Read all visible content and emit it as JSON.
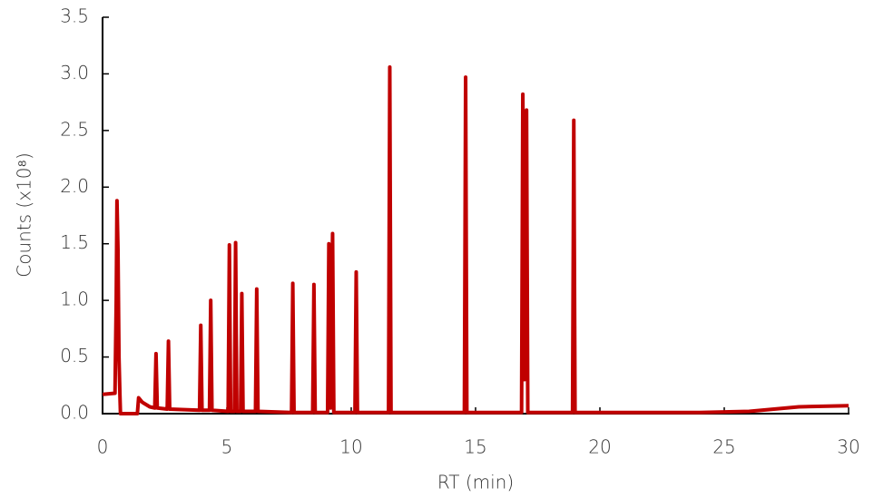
{
  "chart_data": {
    "type": "line",
    "x_label": "RT (min)",
    "y_label": "Counts (x10⁸)",
    "x": [
      0,
      0.5,
      0.55,
      0.58,
      0.62,
      0.66,
      0.7,
      0.72,
      1.4,
      1.45,
      1.6,
      1.9,
      2.1,
      2.15,
      2.2,
      2.6,
      2.65,
      2.7,
      3.9,
      3.95,
      4.0,
      4.3,
      4.35,
      4.4,
      5.05,
      5.1,
      5.15,
      5.3,
      5.35,
      5.4,
      5.55,
      5.6,
      5.65,
      6.15,
      6.2,
      6.25,
      7.6,
      7.65,
      7.7,
      8.45,
      8.5,
      8.55,
      9.05,
      9.1,
      9.17,
      9.25,
      9.3,
      10.15,
      10.2,
      10.25,
      11.5,
      11.55,
      11.6,
      14.55,
      14.6,
      14.65,
      16.85,
      16.9,
      16.97,
      17.05,
      17.1,
      18.9,
      18.95,
      19.0,
      24,
      26,
      28,
      30
    ],
    "values": [
      0.17,
      0.18,
      1.0,
      1.88,
      1.45,
      0.5,
      0.15,
      0,
      0,
      0.14,
      0.1,
      0.06,
      0.05,
      0.53,
      0.05,
      0.04,
      0.64,
      0.04,
      0.03,
      0.78,
      0.03,
      0.03,
      1.0,
      0.03,
      0.02,
      1.49,
      0.02,
      0.02,
      1.51,
      0.02,
      0.02,
      1.06,
      0.02,
      0.02,
      1.1,
      0.02,
      0.01,
      1.15,
      0.01,
      0.01,
      1.14,
      0.01,
      0.01,
      1.5,
      0.05,
      1.59,
      0.01,
      0.01,
      1.25,
      0.01,
      0.01,
      3.06,
      0.01,
      0.01,
      2.97,
      0.01,
      0.01,
      2.82,
      0.3,
      2.68,
      0.01,
      0.01,
      2.59,
      0.01,
      0.01,
      0.02,
      0.06,
      0.07
    ],
    "color": "#c00000",
    "xlim": [
      0,
      30
    ],
    "xticks": [
      0,
      5,
      10,
      15,
      20,
      25,
      30
    ],
    "ylim": [
      0,
      3.5
    ],
    "yticks": [
      {
        "value": 0,
        "label": "0.0"
      },
      {
        "value": 0.5,
        "label": "0.5"
      },
      {
        "value": 1,
        "label": "1.0"
      },
      {
        "value": 1.5,
        "label": "1.5"
      },
      {
        "value": 2,
        "label": "2.0"
      },
      {
        "value": 2.5,
        "label": "2.5"
      },
      {
        "value": 3,
        "label": "3.0"
      },
      {
        "value": 3.5,
        "label": "3.5"
      }
    ],
    "grid": false
  }
}
